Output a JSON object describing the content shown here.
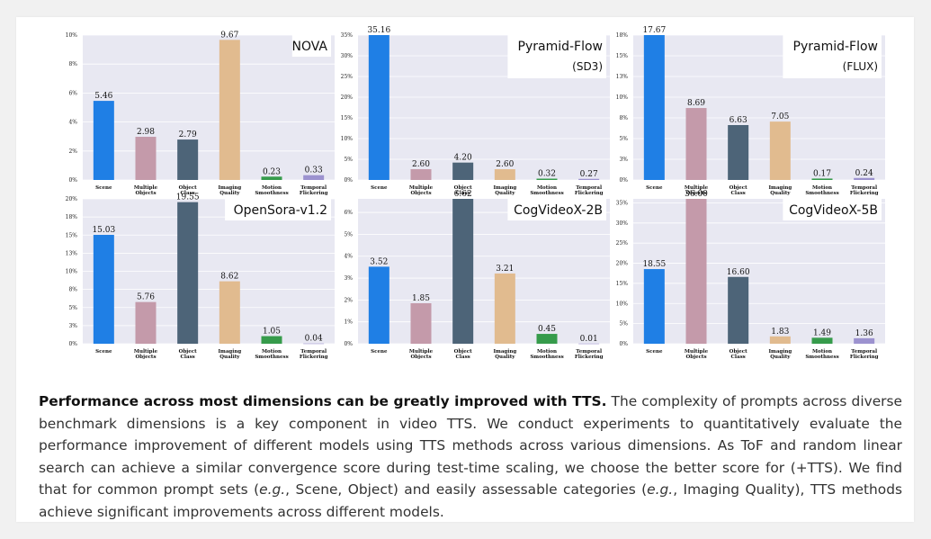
{
  "categories": [
    "Scene",
    "Multiple Objects",
    "Object Class",
    "Imaging Quality",
    "Motion Smoothness",
    "Temporal Flickering"
  ],
  "colors": [
    "#1f7fe5",
    "#c49aaa",
    "#4d6478",
    "#e1bb8f",
    "#369b4b",
    "#9c92cf"
  ],
  "chart_data": [
    {
      "type": "bar",
      "title": "NOVA",
      "subtitle": "",
      "values": [
        5.46,
        2.98,
        2.79,
        9.67,
        0.23,
        0.33
      ],
      "ylim": [
        0,
        10
      ],
      "yticks": [
        "0%",
        "2%",
        "4%",
        "6%",
        "8%",
        "10%"
      ],
      "ytick_values": [
        0,
        2,
        4,
        6,
        8,
        10
      ]
    },
    {
      "type": "bar",
      "title": "Pyramid-Flow",
      "subtitle": "(SD3)",
      "values": [
        35.16,
        2.6,
        4.2,
        2.6,
        0.32,
        0.27
      ],
      "ylim": [
        0,
        35
      ],
      "yticks": [
        "0%",
        "5%",
        "10%",
        "15%",
        "20%",
        "25%",
        "30%",
        "35%"
      ],
      "ytick_values": [
        0,
        5,
        10,
        15,
        20,
        25,
        30,
        35
      ]
    },
    {
      "type": "bar",
      "title": "Pyramid-Flow",
      "subtitle": "(FLUX)",
      "values": [
        17.67,
        8.69,
        6.63,
        7.05,
        0.17,
        0.24
      ],
      "ylim": [
        0,
        17.5
      ],
      "yticks": [
        "0%",
        "3%",
        "5%",
        "8%",
        "10%",
        "13%",
        "15%",
        "18%"
      ],
      "ytick_values": [
        0,
        2.5,
        5,
        7.5,
        10,
        12.5,
        15,
        17.5
      ]
    },
    {
      "type": "bar",
      "title": "OpenSora-v1.2",
      "subtitle": "",
      "values": [
        15.03,
        5.76,
        19.55,
        8.62,
        1.05,
        0.04
      ],
      "ylim": [
        0,
        20
      ],
      "yticks": [
        "0%",
        "3%",
        "5%",
        "8%",
        "10%",
        "13%",
        "15%",
        "18%",
        "20%"
      ],
      "ytick_values": [
        0,
        2.5,
        5,
        7.5,
        10,
        12.5,
        15,
        17.5,
        20
      ]
    },
    {
      "type": "bar",
      "title": "CogVideoX-2B",
      "subtitle": "",
      "values": [
        3.52,
        1.85,
        6.62,
        3.21,
        0.45,
        0.01
      ],
      "ylim": [
        0,
        6.62
      ],
      "yticks": [
        "0%",
        "1%",
        "2%",
        "3%",
        "4%",
        "5%",
        "6%"
      ],
      "ytick_values": [
        0,
        1,
        2,
        3,
        4,
        5,
        6
      ]
    },
    {
      "type": "bar",
      "title": "CogVideoX-5B",
      "subtitle": "",
      "values": [
        18.55,
        36.0,
        16.6,
        1.83,
        1.49,
        1.36
      ],
      "ylim": [
        0,
        36
      ],
      "yticks": [
        "0%",
        "5%",
        "10%",
        "15%",
        "20%",
        "25%",
        "30%",
        "35%"
      ],
      "ytick_values": [
        0,
        5,
        10,
        15,
        20,
        25,
        30,
        35
      ]
    }
  ],
  "caption": {
    "bold": "Performance across most dimensions can be greatly improved with TTS.",
    "part1": " The complexity of prompts across diverse benchmark dimensions is a key component in video TTS. We conduct experiments to quantitatively evaluate the performance improvement of different models using TTS methods across various dimensions. As ToF and random linear search can achieve a similar convergence score during test-time scaling, we choose the better score for (+TTS). We find that for common prompt sets (",
    "eg1": "e.g.",
    "part2": ", Scene, Object) and easily assessable categories (",
    "eg2": "e.g.",
    "part3": ", Imaging Quality), TTS methods achieve significant improvements across different models."
  }
}
